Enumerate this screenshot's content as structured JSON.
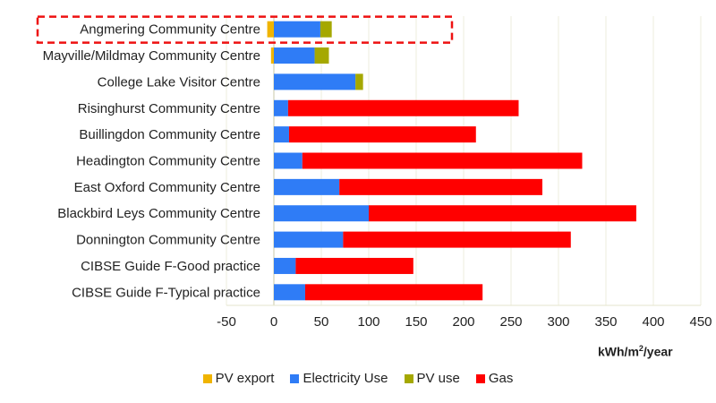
{
  "chart_data": {
    "type": "bar",
    "orientation": "horizontal",
    "stacked": true,
    "categories": [
      "Angmering Community Centre",
      "Mayville/Mildmay Community Centre",
      "College Lake Visitor Centre",
      "Risinghurst Community Centre",
      "Buillingdon Community Centre",
      "Headington Community Centre",
      "East Oxford Community Centre",
      "Blackbird Leys Community Centre",
      "Donnington Community Centre",
      "CIBSE Guide F-Good practice",
      "CIBSE Guide F-Typical practice"
    ],
    "series": [
      {
        "name": "PV export",
        "color": "#f0b400",
        "values": [
          -7,
          -3,
          0,
          0,
          0,
          0,
          0,
          0,
          0,
          0,
          0
        ]
      },
      {
        "name": "Electricity Use",
        "color": "#2f7cf6",
        "values": [
          49,
          43,
          86,
          15,
          16,
          30,
          69,
          100,
          73,
          23,
          33
        ]
      },
      {
        "name": "PV use",
        "color": "#a5a800",
        "values": [
          12,
          15,
          8,
          0,
          0,
          0,
          0,
          0,
          0,
          0,
          0
        ]
      },
      {
        "name": "Gas",
        "color": "#ff0000",
        "values": [
          0,
          0,
          0,
          243,
          197,
          295,
          214,
          282,
          240,
          124,
          187
        ]
      }
    ],
    "xlim": [
      -50,
      450
    ],
    "xticks": [
      -50,
      0,
      50,
      100,
      150,
      200,
      250,
      300,
      350,
      400,
      450
    ],
    "xlabel_main": "kWh/m",
    "xlabel_sup": "2",
    "xlabel_tail": "/year",
    "grid": "vertical",
    "legend": "bottom",
    "highlighted_category": "Angmering Community Centre"
  }
}
